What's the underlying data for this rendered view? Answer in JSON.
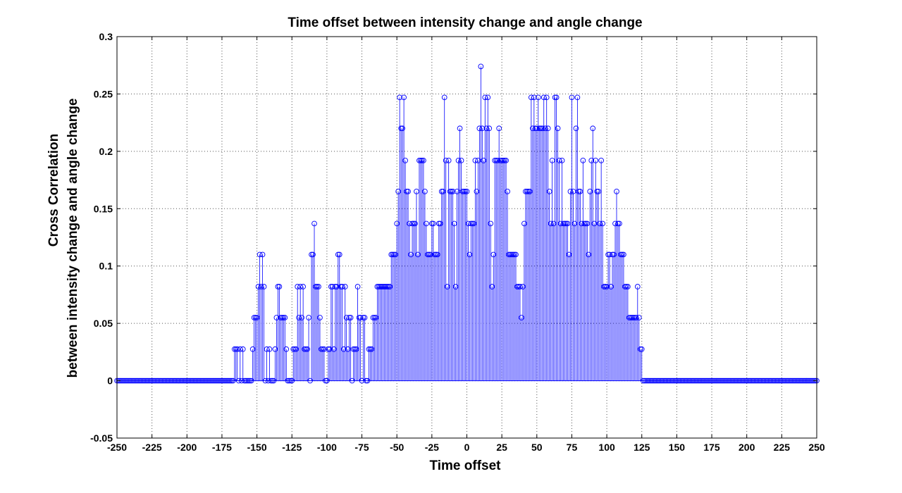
{
  "chart_data": {
    "type": "stem",
    "title": "Time offset between intensity change and angle change",
    "xlabel": "Time offset",
    "ylabel_line1": "Cross Correlation",
    "ylabel_line2": "between intensity change and angle change",
    "xlim": [
      -250,
      250
    ],
    "ylim": [
      -0.05,
      0.3
    ],
    "xticks": [
      -250,
      -225,
      -200,
      -175,
      -150,
      -125,
      -100,
      -75,
      -50,
      -25,
      0,
      25,
      50,
      75,
      100,
      125,
      150,
      175,
      200,
      225,
      250
    ],
    "yticks": [
      -0.05,
      0,
      0.05,
      0.1,
      0.15,
      0.2,
      0.25,
      0.3
    ],
    "ytick_labels": [
      "-0.05",
      "0",
      "0.05",
      "0.1",
      "0.15",
      "0.2",
      "0.25",
      "0.3"
    ],
    "grid": true,
    "series_color": "#0000ff",
    "x_step": 1,
    "x_start": -166,
    "values": [
      0.0275,
      0.0275,
      0.0275,
      0,
      0.0275,
      0,
      0.0275,
      0,
      0,
      0,
      0,
      0,
      0,
      0.0275,
      0.055,
      0.055,
      0.055,
      0.082,
      0.11,
      0.082,
      0.11,
      0.082,
      0,
      0.0275,
      0,
      0.0275,
      0,
      0,
      0,
      0.0275,
      0.055,
      0.082,
      0.082,
      0.055,
      0.055,
      0.055,
      0.055,
      0.0275,
      0,
      0,
      0,
      0,
      0.0275,
      0.0275,
      0.0275,
      0.082,
      0.055,
      0.082,
      0.055,
      0.082,
      0.0275,
      0.0275,
      0.0275,
      0.055,
      0,
      0.11,
      0.11,
      0.137,
      0.082,
      0.082,
      0.082,
      0.055,
      0.0275,
      0.0275,
      0.0275,
      0,
      0,
      0.0275,
      0.0275,
      0.082,
      0.082,
      0.0275,
      0.082,
      0.082,
      0.11,
      0.11,
      0.082,
      0.082,
      0.0275,
      0.082,
      0.055,
      0.0275,
      0.055,
      0.055,
      0,
      0.0275,
      0.0275,
      0.0275,
      0.082,
      0.055,
      0.055,
      0,
      0.055,
      0.055,
      0,
      0,
      0.0275,
      0.0275,
      0.0275,
      0.055,
      0.055,
      0.055,
      0.082,
      0.082,
      0.082,
      0.082,
      0.082,
      0.082,
      0.082,
      0.082,
      0.082,
      0.082,
      0.11,
      0.11,
      0.11,
      0.11,
      0.137,
      0.165,
      0.247,
      0.22,
      0.22,
      0.247,
      0.192,
      0.165,
      0.165,
      0.137,
      0.11,
      0.137,
      0.137,
      0.137,
      0.165,
      0.11,
      0.192,
      0.192,
      0.192,
      0.192,
      0.165,
      0.137,
      0.11,
      0.11,
      0.11,
      0.137,
      0.137,
      0.11,
      0.11,
      0.11,
      0.137,
      0.137,
      0.165,
      0.165,
      0.247,
      0.192,
      0.082,
      0.192,
      0.165,
      0.165,
      0.165,
      0.137,
      0.082,
      0.165,
      0.192,
      0.22,
      0.192,
      0.165,
      0.165,
      0.165,
      0.165,
      0.137,
      0.11,
      0.137,
      0.137,
      0.137,
      0.192,
      0.165,
      0.192,
      0.22,
      0.274,
      0.22,
      0.192,
      0.247,
      0.22,
      0.247,
      0.22,
      0.137,
      0.082,
      0.11,
      0.192,
      0.192,
      0.192,
      0.22,
      0.192,
      0.192,
      0.192,
      0.192,
      0.192,
      0.165,
      0.11,
      0.11,
      0.11,
      0.11,
      0.11,
      0.11,
      0.082,
      0.082,
      0.082,
      0.055,
      0.082,
      0.137,
      0.165,
      0.165,
      0.165,
      0.165,
      0.247,
      0.22,
      0.247,
      0.22,
      0.22,
      0.247,
      0.22,
      0.22,
      0.22,
      0.247,
      0.22,
      0.247,
      0.22,
      0.165,
      0.137,
      0.192,
      0.137,
      0.247,
      0.247,
      0.22,
      0.192,
      0.137,
      0.192,
      0.137,
      0.137,
      0.137,
      0.137,
      0.11,
      0.165,
      0.247,
      0.165,
      0.137,
      0.22,
      0.247,
      0.165,
      0.165,
      0.137,
      0.192,
      0.137,
      0.137,
      0.137,
      0.11,
      0.165,
      0.192,
      0.22,
      0.137,
      0.192,
      0.165,
      0.165,
      0.137,
      0.192,
      0.137,
      0.082,
      0.082,
      0.082,
      0.11,
      0.11,
      0.082,
      0.11,
      0.11,
      0.137,
      0.165,
      0.137,
      0.137,
      0.11,
      0.11,
      0.11,
      0.082,
      0.082,
      0.082,
      0.055,
      0.055,
      0.055,
      0.055,
      0.055,
      0.055,
      0.082,
      0.055,
      0.0275,
      0.0275
    ]
  }
}
